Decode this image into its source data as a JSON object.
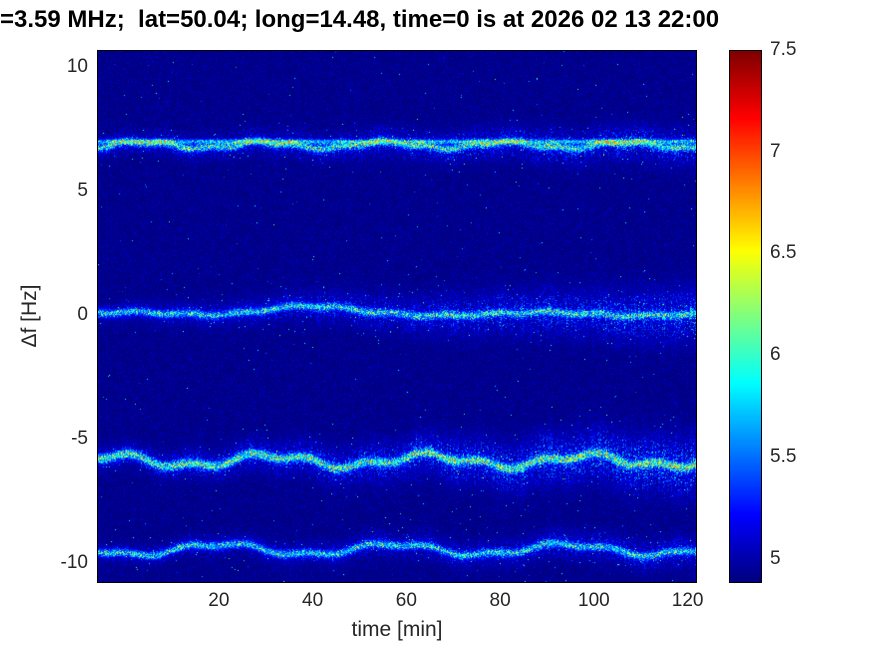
{
  "figure": {
    "title": "=3.59 MHz;  lat=50.04; long=14.48, time=0 is at 2026 02 13 22:00"
  },
  "chart_data": {
    "type": "heatmap",
    "title": "=3.59 MHz;  lat=50.04; long=14.48, time=0 is at 2026 02 13 22:00",
    "xlabel": "time [min]",
    "ylabel": "Δf [Hz]",
    "xlim": [
      -6,
      122
    ],
    "ylim": [
      -10.8,
      10.7
    ],
    "xticks": [
      20,
      40,
      60,
      80,
      100,
      120
    ],
    "yticks": [
      10,
      5,
      0,
      -5,
      -10
    ],
    "grid": false,
    "colorbar": {
      "min": 4.88,
      "max": 7.5,
      "ticks": [
        7.5,
        7,
        6.5,
        6,
        5.5,
        5
      ],
      "colormap": "jet",
      "position": "right"
    },
    "background_level": 4.88,
    "traces": [
      {
        "name": "upper-trace-near-plus-7Hz",
        "center": 6.9,
        "wiggle": [
          [
            0.12,
            26,
            0.8
          ],
          [
            0.05,
            9.3,
            2.0
          ]
        ],
        "core_sigma": 0.1,
        "core_intensity": 1.15,
        "halo_sigma": [
          0.28,
          0.5
        ],
        "halo_intensity": [
          0.5,
          0.7
        ],
        "line_y": 7.05,
        "line_intensity": 0.85
      },
      {
        "name": "center-trace-near-0Hz",
        "center": 0.05,
        "wiggle": [
          [
            0.07,
            44,
            1.5
          ],
          [
            0.04,
            11,
            0.3
          ]
        ],
        "bump": [
          0.28,
          37,
          13
        ],
        "core_sigma": 0.1,
        "core_intensity": 1.05,
        "halo_sigma": [
          0.25,
          0.75
        ],
        "halo_intensity": [
          0.4,
          0.8
        ]
      },
      {
        "name": "lower-trace-near-minus-6Hz",
        "center": -5.9,
        "wiggle": [
          [
            0.22,
            34,
            2.2
          ],
          [
            0.12,
            12.5,
            0.9
          ]
        ],
        "core_sigma": 0.12,
        "core_intensity": 1.3,
        "halo_sigma": [
          0.3,
          0.8
        ],
        "halo_intensity": [
          0.55,
          0.95
        ]
      },
      {
        "name": "lower-trace-near-minus-9p5Hz",
        "center": -9.5,
        "wiggle": [
          [
            0.22,
            37,
            4.4
          ],
          [
            0.08,
            13,
            1.7
          ]
        ],
        "core_sigma": 0.1,
        "core_intensity": 1.05,
        "halo_sigma": [
          0.25,
          0.42
        ],
        "halo_intensity": [
          0.4,
          0.6
        ]
      }
    ]
  }
}
